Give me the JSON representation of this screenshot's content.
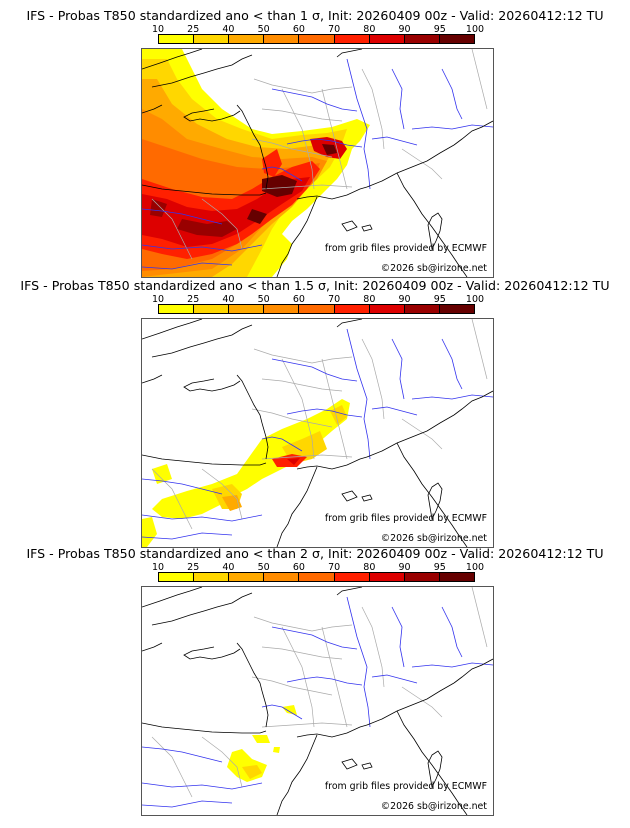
{
  "panels": [
    {
      "title": "IFS - Probas T850  standardized ano < than 1 σ, Init: 20260409 00z - Valid: 20260412:12 TU",
      "threshold_sigma": "1",
      "intensity": "high"
    },
    {
      "title": "IFS - Probas T850  standardized ano < than 1.5 σ, Init: 20260409 00z - Valid: 20260412:12 TU",
      "threshold_sigma": "1.5",
      "intensity": "medium"
    },
    {
      "title": "IFS - Probas T850  standardized ano < than 2 σ, Init: 20260409 00z - Valid: 20260412:12 TU",
      "threshold_sigma": "2",
      "intensity": "low"
    }
  ],
  "colorbar": {
    "ticks": [
      "10",
      "25",
      "40",
      "50",
      "60",
      "70",
      "80",
      "90",
      "95",
      "100"
    ],
    "colors": [
      "#ffff00",
      "#ffd700",
      "#ffaa00",
      "#ff8c00",
      "#ff6a00",
      "#ff2000",
      "#dd0000",
      "#990000",
      "#660000"
    ]
  },
  "credits": {
    "source": "from grib files provided by ECMWF",
    "copyright": "©2026 sb@irizone.net"
  },
  "map_colors": {
    "coast": "#000000",
    "rivers": "#3333ee",
    "borders": "#aaaaaa"
  }
}
